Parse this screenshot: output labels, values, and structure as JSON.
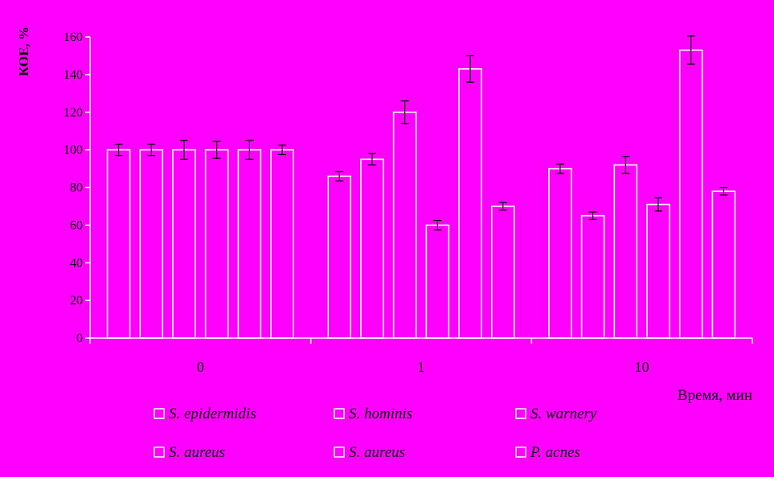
{
  "chart_data": {
    "type": "bar",
    "ylabel": "КОЕ, %",
    "xlabel": "Время, мин",
    "ylim": [
      0,
      160
    ],
    "yticks": [
      0,
      20,
      40,
      60,
      80,
      100,
      120,
      140,
      160
    ],
    "categories": [
      "0",
      "1",
      "10"
    ],
    "grid": false,
    "legend_position": "bottom",
    "series": [
      {
        "name": "S. epidermidis",
        "values": [
          100,
          86,
          90
        ],
        "errors": [
          3,
          2.5,
          2.5
        ]
      },
      {
        "name": "S. hominis",
        "values": [
          100,
          95,
          65
        ],
        "errors": [
          3,
          3,
          2
        ]
      },
      {
        "name": "S. warnery",
        "values": [
          100,
          120,
          92
        ],
        "errors": [
          5,
          6,
          4.5
        ]
      },
      {
        "name": "S. aureus",
        "values": [
          100,
          60,
          71
        ],
        "errors": [
          4.5,
          2.5,
          3.5
        ]
      },
      {
        "name": "S. aureus",
        "values": [
          100,
          143,
          153
        ],
        "errors": [
          5,
          7,
          7.5
        ]
      },
      {
        "name": "P. acnes",
        "values": [
          100,
          70,
          78
        ],
        "errors": [
          2.5,
          2,
          2
        ]
      }
    ],
    "colors": {
      "background": "#ff00ff",
      "bar_fill": "#ff00ff",
      "bar_stroke": "#ffffff",
      "text": "#000000"
    }
  }
}
